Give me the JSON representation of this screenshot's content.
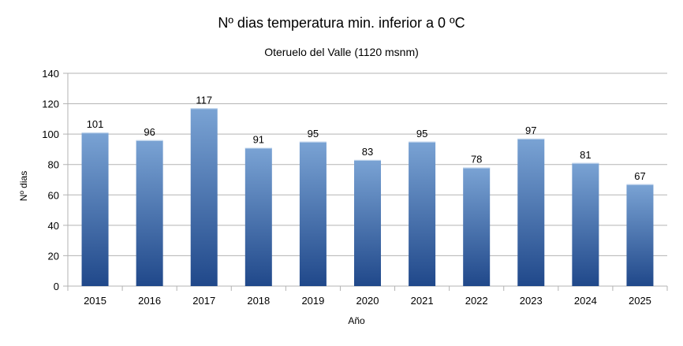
{
  "chart_data": {
    "type": "bar",
    "title": "Nº dias temperatura min. inferior a 0 ºC",
    "subtitle": "Oteruelo del Valle (1120 msnm)",
    "xlabel": "Año",
    "ylabel": "Nº dias",
    "categories": [
      "2015",
      "2016",
      "2017",
      "2018",
      "2019",
      "2020",
      "2021",
      "2022",
      "2023",
      "2024",
      "2025"
    ],
    "values": [
      101,
      96,
      117,
      91,
      95,
      83,
      95,
      78,
      97,
      81,
      67
    ],
    "ylim": [
      0,
      140
    ],
    "yticks": [
      0,
      20,
      40,
      60,
      80,
      100,
      120,
      140
    ],
    "grid": true,
    "legend": "none",
    "colors": {
      "bar_top": "#7aa3d4",
      "bar_bottom": "#20488a",
      "grid": "#b3b3b3"
    }
  }
}
